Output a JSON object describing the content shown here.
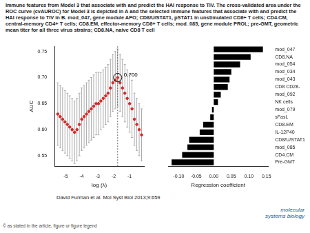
{
  "header": "Immune features from Model 3 that associate with and predict the HAI response to TIV. The cross-validated area under the ROC curve (cvAUROC) for Model 3 is depicted in A and the selected immune features that associate with and predict the HAI response to TIV in B. mod_047, gene module APO; CD8/U/STAT1, pSTAT1 in unstimulated CD8+ T cells; CD4.CM, central-memory CD4+ T cells; CD8.EM, effector-memory CD8+ T cells; mod_085, gene module PROL; pre-GMT, geometric mean titer for all three virus strains; CD8.NA, naive CD8 T cell",
  "citation": "David Furman et al. Mol Syst Biol 2013;9:659",
  "logo": "molecular systems biology",
  "copyright": "© as stated in the article, figure or figure legend",
  "chart_data": [
    {
      "type": "scatter",
      "x_label": "log (λ)",
      "y_label": "AUC",
      "x": [
        -5.5,
        -5.35,
        -5.2,
        -5.05,
        -4.9,
        -4.75,
        -4.6,
        -4.45,
        -4.3,
        -4.15,
        -4.0,
        -3.85,
        -3.7,
        -3.55,
        -3.4,
        -3.25,
        -3.1,
        -2.95,
        -2.8,
        -2.65,
        -2.5,
        -2.35,
        -2.2,
        -2.05,
        -1.9,
        -1.75,
        -1.6,
        -1.45,
        -1.3,
        -1.15,
        -1.0,
        -0.85,
        -0.7,
        -0.55,
        -0.4,
        -0.25
      ],
      "values": [
        0.63,
        0.625,
        0.62,
        0.615,
        0.61,
        0.605,
        0.6,
        0.595,
        0.6,
        0.61,
        0.62,
        0.625,
        0.63,
        0.635,
        0.64,
        0.645,
        0.65,
        0.65,
        0.655,
        0.66,
        0.665,
        0.67,
        0.68,
        0.69,
        0.695,
        0.7,
        0.69,
        0.68,
        0.67,
        0.66,
        0.65,
        0.64,
        0.62,
        0.61,
        0.6,
        0.59
      ],
      "errors": [
        0.06,
        0.06,
        0.06,
        0.06,
        0.06,
        0.06,
        0.06,
        0.06,
        0.06,
        0.06,
        0.06,
        0.06,
        0.06,
        0.06,
        0.06,
        0.06,
        0.06,
        0.06,
        0.055,
        0.055,
        0.055,
        0.055,
        0.055,
        0.055,
        0.055,
        0.055,
        0.055,
        0.055,
        0.055,
        0.055,
        0.055,
        0.055,
        0.05,
        0.05,
        0.05,
        0.05
      ],
      "color": "#d62728",
      "marker": "circle",
      "grid": false,
      "xlim": [
        -5.7,
        -0.1
      ],
      "xticks": [
        -5,
        -4,
        -3,
        -2,
        -1
      ],
      "ylim": [
        0.53,
        0.76
      ],
      "yticks": [
        0.55,
        {
          "value": 0.6,
          "label": "0.60"
        },
        0.65,
        {
          "value": 0.7,
          "label": "0.70"
        },
        0.75
      ],
      "annotation": {
        "x": -1.75,
        "y": 0.7,
        "text": "0.700"
      }
    },
    {
      "type": "bar",
      "orientation": "horizontal",
      "x_label": "Regression coefficient",
      "categories": [
        "mod_047",
        "CD8.NA",
        "mod_054",
        "mod_034",
        "mod_043",
        "CD8 CD28-",
        "mod_092",
        "NK cells",
        "mod_079",
        "sFasL",
        "CD8.EM",
        "IL-12P40",
        "CD8/U/STAT1",
        "mod_085",
        "CD4.CM",
        "Pre-GMT"
      ],
      "values": [
        0.14,
        0.105,
        0.075,
        0.05,
        0.045,
        0.04,
        0.02,
        0.012,
        -0.005,
        -0.01,
        -0.03,
        -0.04,
        -0.07,
        -0.075,
        -0.09,
        -0.12
      ],
      "color": "#000000",
      "grid": false,
      "xlim": [
        -0.13,
        0.155
      ],
      "xticks": [
        {
          "value": -0.1,
          "label": "-0.10"
        },
        {
          "value": -0.05,
          "label": "-0.05"
        },
        {
          "value": 0,
          "label": "0.00"
        },
        {
          "value": 0.05,
          "label": "0.05"
        },
        {
          "value": 0.1,
          "label": "0.10"
        },
        {
          "value": 0.15,
          "label": "0.15"
        }
      ]
    }
  ]
}
